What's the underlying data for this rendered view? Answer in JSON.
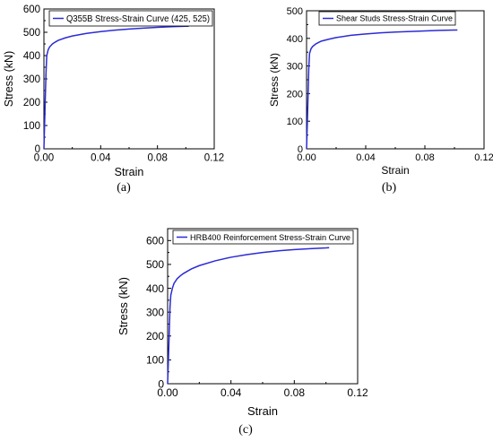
{
  "chart_data": [
    {
      "type": "line",
      "panel": "(a)",
      "xlabel": "Strain",
      "ylabel": "Stress (kN)",
      "xlim": [
        0,
        0.12
      ],
      "ylim": [
        0,
        600
      ],
      "xticks": [
        "0.00",
        "0.04",
        "0.08",
        "0.12"
      ],
      "yticks": [
        "0",
        "100",
        "200",
        "300",
        "400",
        "500",
        "600"
      ],
      "legend_position": "top-left",
      "series": [
        {
          "name": "Q355B Stress-Strain Curve (425, 525)",
          "color": "#2b2bd6",
          "x": [
            0,
            0.0005,
            0.001,
            0.0015,
            0.002,
            0.003,
            0.004,
            0.006,
            0.008,
            0.01,
            0.015,
            0.02,
            0.03,
            0.04,
            0.05,
            0.06,
            0.07,
            0.08,
            0.09,
            0.1,
            0.102
          ],
          "y": [
            0,
            110,
            225,
            330,
            400,
            425,
            437,
            450,
            458,
            465,
            476,
            484,
            495,
            503,
            509,
            514,
            518,
            521,
            524,
            526,
            526
          ]
        }
      ]
    },
    {
      "type": "line",
      "panel": "(b)",
      "xlabel": "Strain",
      "ylabel": "Stress (kN)",
      "xlim": [
        0,
        0.12
      ],
      "ylim": [
        0,
        500
      ],
      "xticks": [
        "0.00",
        "0.04",
        "0.08",
        "0.12"
      ],
      "yticks": [
        "0",
        "100",
        "200",
        "300",
        "400",
        "500"
      ],
      "legend_position": "top-left",
      "series": [
        {
          "name": "Shear Studs Stress-Strain Curve",
          "color": "#2b2bd6",
          "x": [
            0,
            0.0005,
            0.001,
            0.0015,
            0.002,
            0.003,
            0.004,
            0.006,
            0.008,
            0.01,
            0.015,
            0.02,
            0.03,
            0.04,
            0.05,
            0.06,
            0.07,
            0.08,
            0.09,
            0.1,
            0.102
          ],
          "y": [
            0,
            90,
            190,
            290,
            345,
            362,
            370,
            379,
            385,
            390,
            397,
            403,
            411,
            416,
            420,
            423,
            425,
            427,
            429,
            430,
            430
          ]
        }
      ]
    },
    {
      "type": "line",
      "panel": "(c)",
      "xlabel": "Strain",
      "ylabel": "Stress (kN)",
      "xlim": [
        0,
        0.12
      ],
      "ylim": [
        0,
        650
      ],
      "xticks": [
        "0.00",
        "0.04",
        "0.08",
        "0.12"
      ],
      "yticks": [
        "0",
        "100",
        "200",
        "300",
        "400",
        "500",
        "600"
      ],
      "legend_position": "top-left",
      "series": [
        {
          "name": "HRB400 Reinforcement Stress-Strain Curve",
          "color": "#2b2bd6",
          "x": [
            0,
            0.0005,
            0.001,
            0.0015,
            0.002,
            0.003,
            0.004,
            0.006,
            0.008,
            0.01,
            0.015,
            0.02,
            0.03,
            0.04,
            0.05,
            0.06,
            0.07,
            0.08,
            0.09,
            0.1,
            0.102
          ],
          "y": [
            0,
            100,
            210,
            320,
            370,
            400,
            420,
            440,
            452,
            462,
            481,
            495,
            515,
            530,
            541,
            550,
            557,
            562,
            566,
            569,
            570
          ]
        }
      ]
    }
  ]
}
